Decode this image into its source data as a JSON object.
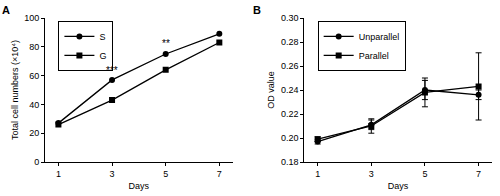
{
  "chart_data": [
    {
      "type": "line",
      "panel_label": "A",
      "xlabel": "Days",
      "ylabel": "Total cell numbers (×10⁴)",
      "x": [
        1,
        3,
        5,
        7
      ],
      "xlim": [
        0.5,
        7.5
      ],
      "xticks": [
        1,
        3,
        5,
        7
      ],
      "ylim": [
        0,
        100
      ],
      "yticks": [
        0,
        20,
        40,
        60,
        80,
        100
      ],
      "grid": false,
      "legend": "upper left",
      "series": [
        {
          "name": "S",
          "color": "#000000",
          "marker": "circle",
          "line_style": "solid",
          "values": [
            27,
            57,
            75,
            89
          ]
        },
        {
          "name": "G",
          "color": "#000000",
          "marker": "square",
          "line_style": "solid",
          "values": [
            26,
            43,
            64,
            83
          ]
        }
      ],
      "annotations": [
        {
          "text": "***",
          "x": 3,
          "y": 58
        },
        {
          "text": "**",
          "x": 5,
          "y": 77
        }
      ]
    },
    {
      "type": "line",
      "panel_label": "B",
      "xlabel": "Days",
      "ylabel": "OD value",
      "x": [
        1,
        3,
        5,
        7
      ],
      "xlim": [
        0.5,
        7.5
      ],
      "xticks": [
        1,
        3,
        5,
        7
      ],
      "ylim": [
        0.18,
        0.3
      ],
      "yticks": [
        0.18,
        {
          "value": 0.2,
          "label": "0.20"
        },
        0.22,
        0.24,
        0.26,
        0.28,
        {
          "value": 0.3,
          "label": "0.30"
        }
      ],
      "grid": false,
      "legend": "upper left",
      "series": [
        {
          "name": "Unparallel",
          "color": "#000000",
          "marker": "circle",
          "line_style": "solid",
          "values": [
            0.197,
            0.211,
            0.24,
            0.236
          ],
          "errors": [
            0.002,
            0.004,
            0.008,
            0.004
          ]
        },
        {
          "name": "Parallel",
          "color": "#000000",
          "marker": "square",
          "line_style": "solid",
          "values": [
            0.199,
            0.21,
            0.238,
            0.243
          ],
          "errors": [
            0.002,
            0.006,
            0.012,
            0.028
          ]
        }
      ]
    }
  ]
}
